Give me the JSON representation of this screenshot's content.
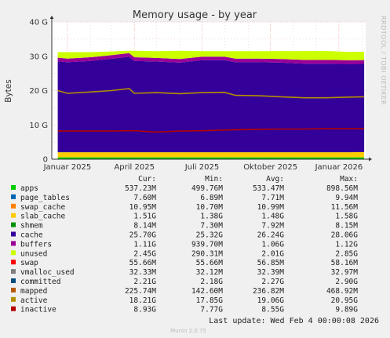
{
  "chart_data": {
    "type": "area",
    "title": "Memory usage - by year",
    "ylabel": "Bytes",
    "side_label": "RRDTOOL / TOBI OETIKER",
    "ylim": [
      0,
      40000000000
    ],
    "yticks": [
      {
        "v": 0,
        "label": "0"
      },
      {
        "v": 10000000000,
        "label": "10 G"
      },
      {
        "v": 20000000000,
        "label": "20 G"
      },
      {
        "v": 30000000000,
        "label": "30 G"
      },
      {
        "v": 40000000000,
        "label": "40 G"
      }
    ],
    "xlim": [
      "2024-12-11",
      "2026-02-06"
    ],
    "xticks": [
      {
        "date": "2025-01-01",
        "label": "Januar 2025"
      },
      {
        "date": "2025-04-01",
        "label": "April 2025"
      },
      {
        "date": "2025-07-01",
        "label": "Juli 2025"
      },
      {
        "date": "2025-10-01",
        "label": "Oktober 2025"
      },
      {
        "date": "2026-01-01",
        "label": "Januar 2026"
      }
    ],
    "data_start": "2024-12-19",
    "x": [
      "2024-12-19",
      "2025-01-01",
      "2025-02-01",
      "2025-03-01",
      "2025-03-25",
      "2025-04-01",
      "2025-05-01",
      "2025-06-01",
      "2025-07-01",
      "2025-07-31",
      "2025-08-15",
      "2025-09-15",
      "2025-10-15",
      "2025-11-15",
      "2025-12-15",
      "2026-01-15",
      "2026-02-04"
    ],
    "series": [
      {
        "name": "apps",
        "color": "#00cc00",
        "values": [
          0.54,
          0.54,
          0.54,
          0.54,
          0.54,
          0.54,
          0.54,
          0.54,
          0.54,
          0.54,
          0.54,
          0.54,
          0.54,
          0.54,
          0.54,
          0.54,
          0.54
        ]
      },
      {
        "name": "page_tables",
        "color": "#0066b3",
        "values": [
          0.008,
          0.008,
          0.008,
          0.008,
          0.008,
          0.008,
          0.008,
          0.008,
          0.008,
          0.008,
          0.008,
          0.008,
          0.008,
          0.008,
          0.008,
          0.008,
          0.008
        ]
      },
      {
        "name": "swap_cache",
        "color": "#ff8000",
        "values": [
          0.011,
          0.011,
          0.011,
          0.011,
          0.011,
          0.011,
          0.011,
          0.011,
          0.011,
          0.011,
          0.011,
          0.011,
          0.011,
          0.011,
          0.011,
          0.011,
          0.011
        ]
      },
      {
        "name": "slab_cache",
        "color": "#ffcc00",
        "values": [
          1.48,
          1.48,
          1.48,
          1.48,
          1.48,
          1.48,
          1.48,
          1.48,
          1.48,
          1.48,
          1.48,
          1.48,
          1.48,
          1.48,
          1.48,
          1.48,
          1.51
        ]
      },
      {
        "name": "shmem",
        "color": "#330099",
        "values": [
          0.008,
          0.008,
          0.008,
          0.008,
          0.008,
          0.008,
          0.008,
          0.008,
          0.008,
          0.008,
          0.008,
          0.008,
          0.008,
          0.008,
          0.008,
          0.008,
          0.008
        ]
      },
      {
        "name": "cache",
        "color": "#330099",
        "values": [
          26.5,
          26.2,
          26.6,
          27.2,
          27.8,
          26.6,
          26.4,
          26.1,
          26.8,
          26.8,
          26.2,
          26.2,
          26.1,
          25.8,
          25.8,
          25.7,
          25.7
        ]
      },
      {
        "name": "buffers",
        "color": "#990099",
        "values": [
          1.05,
          1.05,
          1.06,
          1.07,
          1.08,
          1.06,
          1.06,
          1.06,
          1.06,
          1.06,
          1.06,
          1.06,
          1.07,
          1.08,
          1.09,
          1.1,
          1.11
        ]
      },
      {
        "name": "unused",
        "color": "#ccff00",
        "values": [
          1.6,
          1.9,
          1.5,
          1.1,
          0.7,
          1.9,
          2.0,
          2.4,
          1.6,
          1.6,
          2.2,
          2.2,
          2.3,
          2.6,
          2.6,
          2.4,
          2.45
        ]
      }
    ],
    "lines": [
      {
        "name": "active",
        "color": "#b38f00",
        "values": [
          20.0,
          19.2,
          19.6,
          20.0,
          20.6,
          19.2,
          19.4,
          19.1,
          19.4,
          19.5,
          18.6,
          18.5,
          18.2,
          17.9,
          17.9,
          18.1,
          18.2
        ]
      },
      {
        "name": "inactive",
        "color": "#b30000",
        "values": [
          8.2,
          8.2,
          8.2,
          8.2,
          8.3,
          8.3,
          7.9,
          8.2,
          8.3,
          8.5,
          8.6,
          8.7,
          8.8,
          8.8,
          8.9,
          8.9,
          8.9
        ]
      }
    ],
    "legend_headers": [
      "Cur:",
      "Min:",
      "Avg:",
      "Max:"
    ],
    "legend": [
      {
        "name": "apps",
        "color": "#00cc00",
        "cur": "537.23M",
        "min": "499.76M",
        "avg": "533.47M",
        "max": "898.56M"
      },
      {
        "name": "page_tables",
        "color": "#0066b3",
        "cur": "7.60M",
        "min": "6.89M",
        "avg": "7.71M",
        "max": "9.94M"
      },
      {
        "name": "swap_cache",
        "color": "#ff8000",
        "cur": "10.95M",
        "min": "10.70M",
        "avg": "10.99M",
        "max": "11.56M"
      },
      {
        "name": "slab_cache",
        "color": "#ffcc00",
        "cur": "1.51G",
        "min": "1.38G",
        "avg": "1.48G",
        "max": "1.58G"
      },
      {
        "name": "shmem",
        "color": "#008f00",
        "cur": "8.14M",
        "min": "7.30M",
        "avg": "7.92M",
        "max": "8.15M"
      },
      {
        "name": "cache",
        "color": "#330099",
        "cur": "25.70G",
        "min": "25.32G",
        "avg": "26.24G",
        "max": "28.06G"
      },
      {
        "name": "buffers",
        "color": "#990099",
        "cur": "1.11G",
        "min": "939.70M",
        "avg": "1.06G",
        "max": "1.12G"
      },
      {
        "name": "unused",
        "color": "#ccff00",
        "cur": "2.45G",
        "min": "290.31M",
        "avg": "2.01G",
        "max": "2.85G"
      },
      {
        "name": "swap",
        "color": "#ff0000",
        "cur": "55.66M",
        "min": "55.66M",
        "avg": "56.85M",
        "max": "58.16M"
      },
      {
        "name": "vmalloc_used",
        "color": "#808080",
        "cur": "32.33M",
        "min": "32.12M",
        "avg": "32.39M",
        "max": "32.97M"
      },
      {
        "name": "committed",
        "color": "#004d80",
        "cur": "2.21G",
        "min": "2.18G",
        "avg": "2.27G",
        "max": "2.90G"
      },
      {
        "name": "mapped",
        "color": "#b35900",
        "cur": "225.74M",
        "min": "142.60M",
        "avg": "236.82M",
        "max": "468.92M"
      },
      {
        "name": "active",
        "color": "#b38f00",
        "cur": "18.21G",
        "min": "17.85G",
        "avg": "19.06G",
        "max": "20.95G"
      },
      {
        "name": "inactive",
        "color": "#b30000",
        "cur": "8.93G",
        "min": "7.77G",
        "avg": "8.55G",
        "max": "9.89G"
      }
    ],
    "last_update": "Last update: Wed Feb  4 00:00:08 2026",
    "footer": "Munin 2.0.75",
    "colors": {
      "background": "#f0f0f0",
      "plot_bg": "#ffffff",
      "grid_major": "#ff9090",
      "grid_minor": "#e6b0b0"
    }
  }
}
